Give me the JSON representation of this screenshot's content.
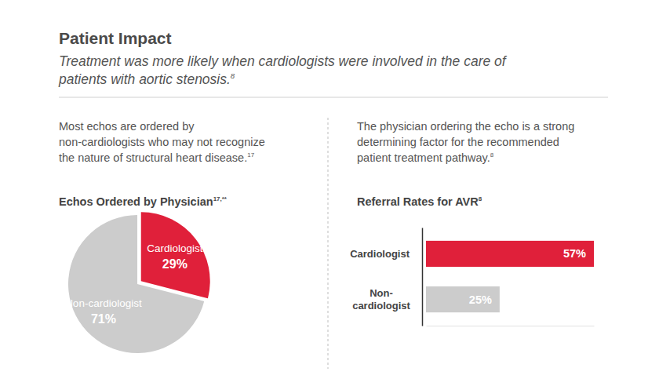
{
  "header": {
    "title": "Patient Impact",
    "subtitle": [
      "Treatment was more likely when cardiologists were involved in the care of",
      "patients with aortic stenosis."
    ],
    "subtitle_ref": "8"
  },
  "notes": [
    {
      "lines": [
        "Most echos are ordered by",
        "non-cardiologists who may not recognize",
        "the nature of structural heart disease."
      ],
      "ref": "17"
    },
    {
      "lines": [
        "The physician ordering the echo is a strong",
        "determining factor for the recommended",
        "patient treatment pathway."
      ],
      "ref": "8"
    }
  ],
  "chart_data": [
    {
      "type": "pie",
      "title": "Echos Ordered by Physician",
      "title_ref": "17,**",
      "categories": [
        "Cardiologist",
        "Non-cardiologist"
      ],
      "values": [
        29,
        71
      ],
      "value_labels": [
        "29%",
        "71%"
      ],
      "colors": [
        "#e0203a",
        "#cccccc"
      ],
      "data_labels": true
    },
    {
      "type": "bar",
      "orientation": "horizontal",
      "title": "Referral Rates for AVR",
      "title_ref": "8",
      "categories": [
        "Cardiologist",
        "Non-cardiologist"
      ],
      "values": [
        57,
        25
      ],
      "value_labels": [
        "57%",
        "25%"
      ],
      "colors": [
        "#e0203a",
        "#cccccc"
      ],
      "xlim": [
        0,
        57
      ],
      "data_labels": true,
      "tick_labels": "y"
    }
  ]
}
